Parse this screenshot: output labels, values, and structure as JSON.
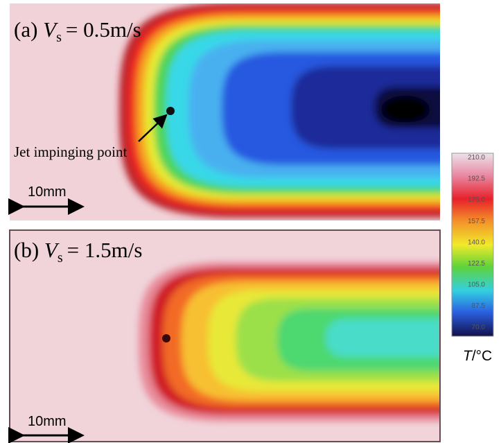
{
  "panels": [
    {
      "label": "(a)",
      "symbol": "V",
      "subscript": "s",
      "equation": "= 0.5m/s",
      "scale_bar": "10mm",
      "annotation": "Jet impinging point"
    },
    {
      "label": "(b)",
      "symbol": "V",
      "subscript": "s",
      "equation": "= 1.5m/s",
      "scale_bar": "10mm"
    }
  ],
  "colorbar": {
    "labels": [
      "210.0",
      "192.5",
      "175.0",
      "157.5",
      "140.0",
      "122.5",
      "105.0",
      "87.5",
      "70.0"
    ],
    "unit_symbol": "T",
    "unit": "/°C"
  }
}
